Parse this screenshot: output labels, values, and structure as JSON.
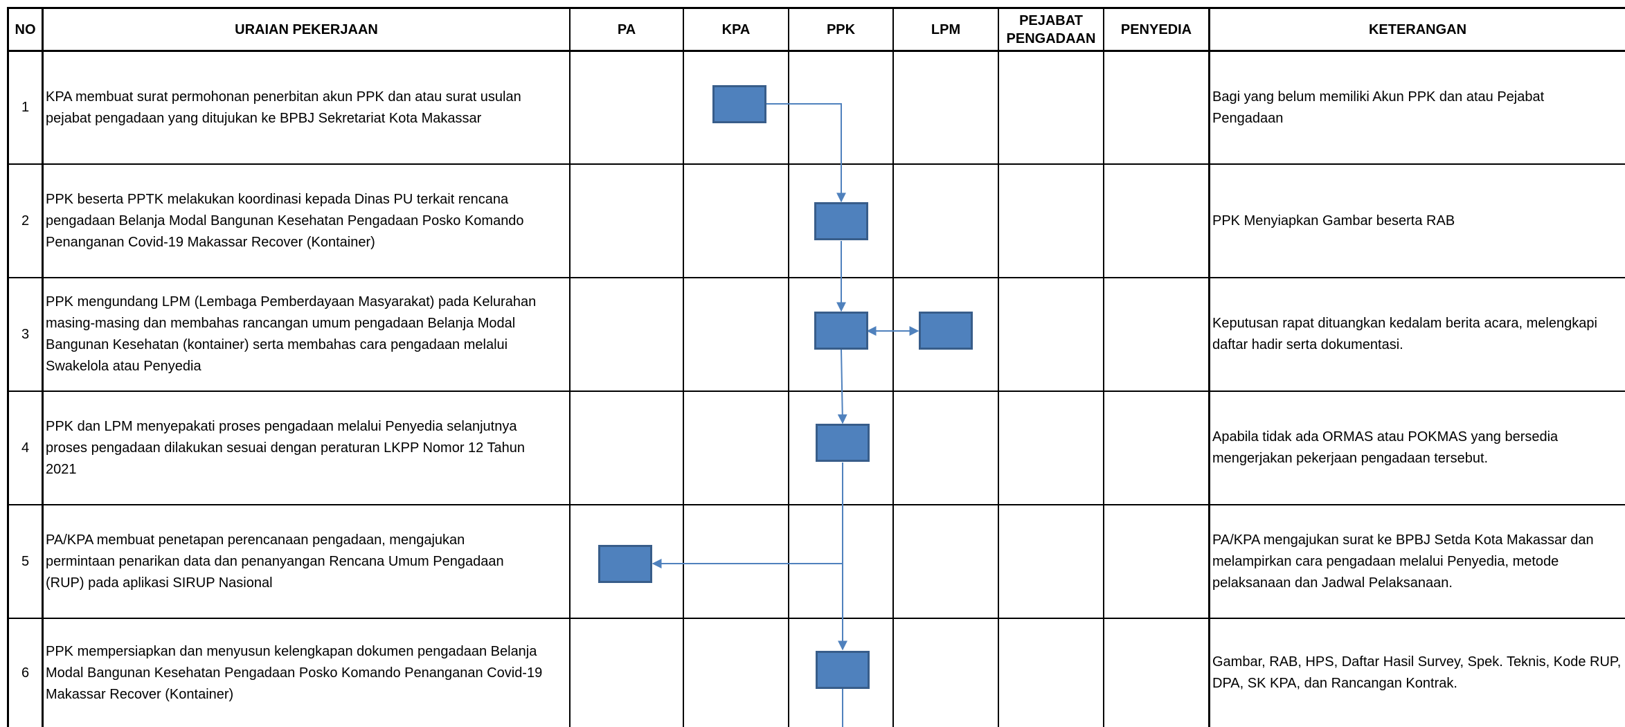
{
  "headers": {
    "no": "NO",
    "uraian": "URAIAN PEKERJAAN",
    "pa": "PA",
    "kpa": "KPA",
    "ppk": "PPK",
    "lpm": "LPM",
    "pejabat": "PEJABAT\nPENGADAAN",
    "penyedia": "PENYEDIA",
    "keterangan": "KETERANGAN"
  },
  "rows": [
    {
      "no": "1",
      "uraian": "KPA membuat surat permohonan penerbitan akun PPK dan atau surat usulan\npejabat pengadaan yang ditujukan ke BPBJ Sekretariat Kota Makassar",
      "keterangan": "Bagi yang belum memiliki Akun PPK dan atau Pejabat\nPengadaan",
      "actors": [
        "KPA"
      ]
    },
    {
      "no": "2",
      "uraian": "PPK beserta PPTK melakukan koordinasi kepada Dinas PU terkait rencana\npengadaan Belanja Modal Bangunan Kesehatan Pengadaan Posko Komando\nPenanganan Covid-19 Makassar Recover (Kontainer)",
      "keterangan": " PPK Menyiapkan Gambar beserta RAB",
      "actors": [
        "PPK"
      ]
    },
    {
      "no": "3",
      "uraian": "PPK mengundang LPM (Lembaga Pemberdayaan Masyarakat) pada Kelurahan\nmasing-masing dan membahas rancangan umum pengadaan Belanja Modal\nBangunan Kesehatan (kontainer) serta membahas cara pengadaan melalui\nSwakelola atau Penyedia",
      "keterangan": "Keputusan rapat dituangkan kedalam berita acara, melengkapi\ndaftar hadir serta dokumentasi.",
      "actors": [
        "PPK",
        "LPM"
      ]
    },
    {
      "no": "4",
      "uraian": "PPK dan LPM menyepakati proses pengadaan melalui Penyedia selanjutnya\nproses pengadaan dilakukan sesuai dengan peraturan LKPP Nomor 12 Tahun\n2021",
      "keterangan": "Apabila tidak ada ORMAS atau POKMAS yang bersedia\nmengerjakan pekerjaan pengadaan tersebut.",
      "actors": [
        "PPK"
      ]
    },
    {
      "no": "5",
      "uraian": "PA/KPA membuat penetapan perencanaan pengadaan, mengajukan\npermintaan penarikan data dan penanyangan Rencana Umum Pengadaan\n(RUP) pada aplikasi SIRUP Nasional",
      "keterangan": "PA/KPA mengajukan surat ke BPBJ Setda Kota Makassar dan\nmelampirkan cara pengadaan melalui Penyedia, metode\npelaksanaan dan Jadwal Pelaksanaan.",
      "actors": [
        "PA"
      ]
    },
    {
      "no": "6",
      "uraian": "PPK mempersiapkan dan menyusun kelengkapan dokumen pengadaan Belanja\nModal Bangunan Kesehatan Pengadaan Posko Komando Penanganan Covid-19\nMakassar Recover (Kontainer)",
      "keterangan": "Gambar, RAB, HPS, Daftar Hasil Survey, Spek. Teknis, Kode RUP,\nDPA, SK KPA, dan Rancangan Kontrak.",
      "actors": [
        "PPK"
      ]
    }
  ],
  "colors": {
    "process_fill": "#4f81bd",
    "process_border": "#385d8a",
    "connector": "#4f81bd",
    "grid": "#000000"
  }
}
